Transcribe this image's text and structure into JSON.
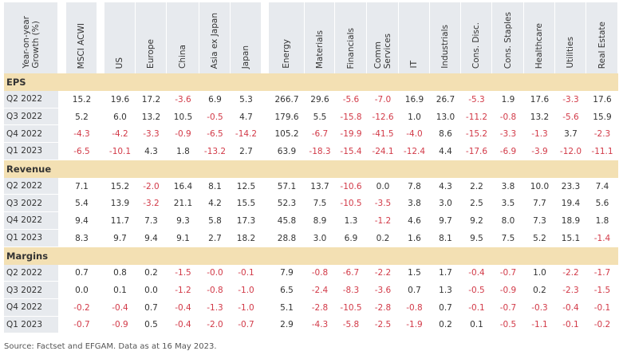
{
  "header": {
    "row_label": "Year-on-year\nGrowth (%)",
    "columns": [
      "MSCI ACWI",
      "US",
      "Europe",
      "China",
      "Asia ex Japan",
      "Japan",
      "Energy",
      "Materials",
      "Financials",
      "Comm\nServices",
      "IT",
      "Industrials",
      "Cons. Disc.",
      "Cons. Staples",
      "Healthcare",
      "Utilities",
      "Real Estate"
    ]
  },
  "colors": {
    "header_bg": "#e7eaee",
    "section_bg": "#f3e0b3",
    "negative": "#d23a48",
    "text": "#333333"
  },
  "sections": [
    {
      "title": "EPS",
      "rows": [
        {
          "label": "Q2 2022",
          "values": [
            "15.2",
            "19.6",
            "17.2",
            "-3.6",
            "6.9",
            "5.3",
            "266.7",
            "29.6",
            "-5.6",
            "-7.0",
            "16.9",
            "26.7",
            "-5.3",
            "1.9",
            "17.6",
            "-3.3",
            "17.6"
          ]
        },
        {
          "label": "Q3 2022",
          "values": [
            "5.2",
            "6.0",
            "13.2",
            "10.5",
            "-0.5",
            "4.7",
            "179.6",
            "5.5",
            "-15.8",
            "-12.6",
            "1.0",
            "13.0",
            "-11.2",
            "-0.8",
            "13.2",
            "-5.6",
            "15.9"
          ]
        },
        {
          "label": "Q4 2022",
          "values": [
            "-4.3",
            "-4.2",
            "-3.3",
            "-0.9",
            "-6.5",
            "-14.2",
            "105.2",
            "-6.7",
            "-19.9",
            "-41.5",
            "-4.0",
            "8.6",
            "-15.2",
            "-3.3",
            "-1.3",
            "3.7",
            "-2.3"
          ]
        },
        {
          "label": "Q1 2023",
          "values": [
            "-6.5",
            "-10.1",
            "4.3",
            "1.8",
            "-13.2",
            "2.7",
            "63.9",
            "-18.3",
            "-15.4",
            "-24.1",
            "-12.4",
            "4.4",
            "-17.6",
            "-6.9",
            "-3.9",
            "-12.0",
            "-11.1"
          ]
        }
      ]
    },
    {
      "title": "Revenue",
      "rows": [
        {
          "label": "Q2 2022",
          "values": [
            "7.1",
            "15.2",
            "-2.0",
            "16.4",
            "8.1",
            "12.5",
            "57.1",
            "13.7",
            "-10.6",
            "0.0",
            "7.8",
            "4.3",
            "2.2",
            "3.8",
            "10.0",
            "23.3",
            "7.4"
          ]
        },
        {
          "label": "Q3 2022",
          "values": [
            "5.4",
            "13.9",
            "-3.2",
            "21.1",
            "4.2",
            "15.5",
            "52.3",
            "7.5",
            "-10.5",
            "-3.5",
            "3.8",
            "3.0",
            "2.5",
            "3.5",
            "7.7",
            "19.4",
            "5.6"
          ]
        },
        {
          "label": "Q4 2022",
          "values": [
            "9.4",
            "11.7",
            "7.3",
            "9.3",
            "5.8",
            "17.3",
            "45.8",
            "8.9",
            "1.3",
            "-1.2",
            "4.6",
            "9.7",
            "9.2",
            "8.0",
            "7.3",
            "18.9",
            "1.8"
          ]
        },
        {
          "label": "Q1 2023",
          "values": [
            "8.3",
            "9.7",
            "9.4",
            "9.1",
            "2.7",
            "18.2",
            "28.8",
            "3.0",
            "6.9",
            "0.2",
            "1.6",
            "8.1",
            "9.5",
            "7.5",
            "5.2",
            "15.1",
            "-1.4"
          ]
        }
      ]
    },
    {
      "title": "Margins",
      "rows": [
        {
          "label": "Q2 2022",
          "values": [
            "0.7",
            "0.8",
            "0.2",
            "-1.5",
            "-0.0",
            "-0.1",
            "7.9",
            "-0.8",
            "-6.7",
            "-2.2",
            "1.5",
            "1.7",
            "-0.4",
            "-0.7",
            "1.0",
            "-2.2",
            "-1.7"
          ]
        },
        {
          "label": "Q3 2022",
          "values": [
            "0.0",
            "0.1",
            "0.0",
            "-1.2",
            "-0.8",
            "-1.0",
            "6.5",
            "-2.4",
            "-8.3",
            "-3.6",
            "0.7",
            "1.3",
            "-0.5",
            "-0.9",
            "0.2",
            "-2.3",
            "-1.5"
          ]
        },
        {
          "label": "Q4 2022",
          "values": [
            "-0.2",
            "-0.4",
            "0.7",
            "-0.4",
            "-1.3",
            "-1.0",
            "5.1",
            "-2.8",
            "-10.5",
            "-2.8",
            "-0.8",
            "0.7",
            "-0.1",
            "-0.7",
            "-0.3",
            "-0.4",
            "-0.1"
          ]
        },
        {
          "label": "Q1 2023",
          "values": [
            "-0.7",
            "-0.9",
            "0.5",
            "-0.4",
            "-2.0",
            "-0.7",
            "2.9",
            "-4.3",
            "-5.8",
            "-2.5",
            "-1.9",
            "0.2",
            "0.1",
            "-0.5",
            "-1.1",
            "-0.1",
            "-0.2"
          ]
        }
      ]
    }
  ],
  "source": "Source: Factset and EFGAM. Data as at 16 May 2023."
}
